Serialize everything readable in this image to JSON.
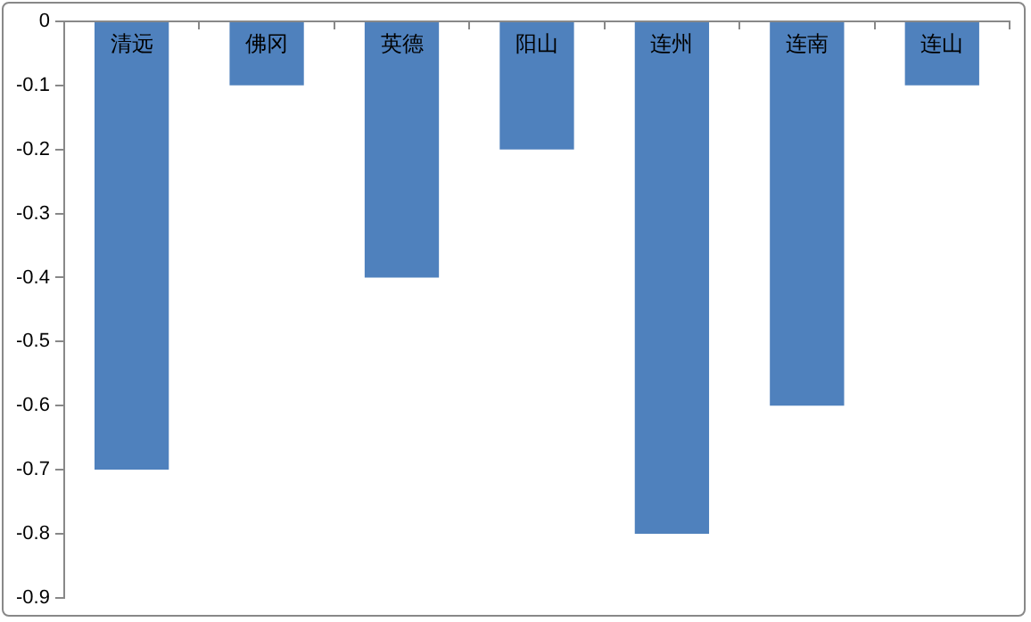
{
  "chart_data": {
    "type": "bar",
    "categories": [
      "清远",
      "佛冈",
      "英德",
      "阳山",
      "连州",
      "连南",
      "连山"
    ],
    "values": [
      -0.7,
      -0.1,
      -0.4,
      -0.2,
      -0.8,
      -0.6,
      -0.1
    ],
    "color": "#4f81bd",
    "ylim": [
      -0.9,
      0
    ],
    "yticks": [
      -0.9,
      -0.8,
      -0.7,
      -0.6,
      -0.5,
      -0.4,
      -0.3,
      -0.2,
      -0.1,
      0
    ],
    "grid": false,
    "legend": false
  }
}
